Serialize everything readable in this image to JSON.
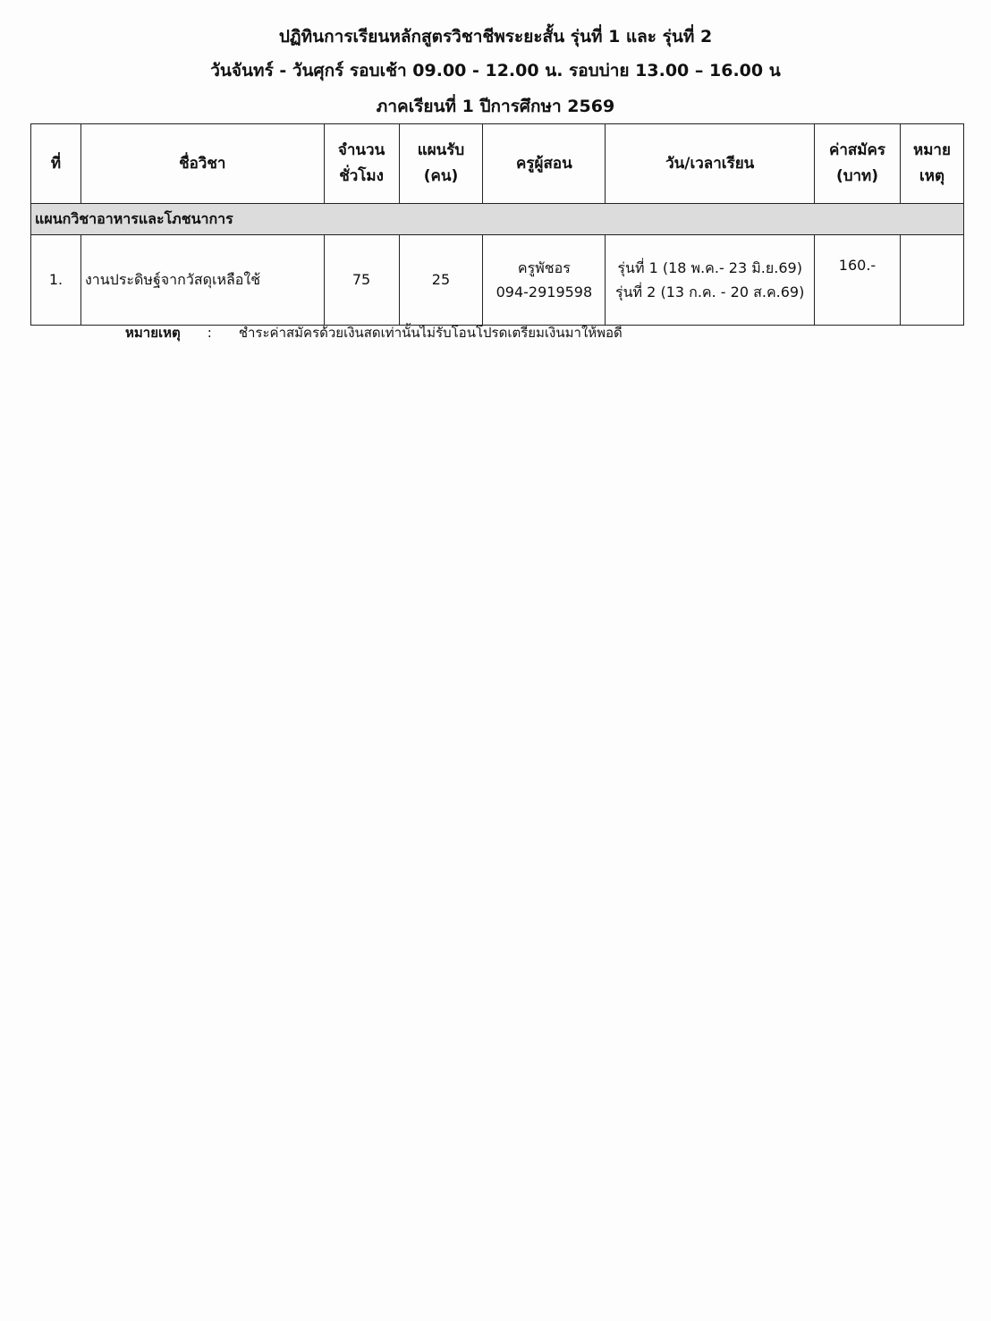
{
  "header": {
    "line1": "ปฏิทินการเรียนหลักสูตรวิชาชีพระยะสั้น รุ่นที่ 1 และ รุ่นที่ 2",
    "line2": "วันจันทร์ - วันศุกร์ รอบเช้า 09.00 - 12.00 น.  รอบบ่าย 13.00 – 16.00 น",
    "line3": "ภาคเรียนที่ 1 ปีการศึกษา 2569"
  },
  "table": {
    "columns": [
      {
        "l1": "ที่",
        "l2": ""
      },
      {
        "l1": "ชื่อวิชา",
        "l2": ""
      },
      {
        "l1": "จำนวน",
        "l2": "ชั่วโมง"
      },
      {
        "l1": "แผนรับ",
        "l2": "(คน)"
      },
      {
        "l1": "ครูผู้สอน",
        "l2": ""
      },
      {
        "l1": "วัน/เวลาเรียน",
        "l2": ""
      },
      {
        "l1": "ค่าสมัคร",
        "l2": "(บาท)"
      },
      {
        "l1": "หมาย",
        "l2": "เหตุ"
      }
    ],
    "category": "แผนกวิชาอาหารและโภชนาการ",
    "rows": [
      {
        "no": "1.",
        "subject": "งานประดิษฐ์จากวัสดุเหลือใช้",
        "hours": "75",
        "capacity": "25",
        "teacher": "ครูพัชอร",
        "phone": "094-2919598",
        "schedule1": "รุ่นที่ 1 (18 พ.ค.- 23 มิ.ย.69)",
        "schedule2": "รุ่นที่ 2 (13 ก.ค. - 20 ส.ค.69)",
        "fee": "160.-",
        "remark": ""
      }
    ]
  },
  "note": {
    "label": "หมายเหตุ",
    "colon": ":",
    "text": "ชำระค่าสมัครด้วยเงินสดเท่านั้นไม่รับโอนโปรดเตรียมเงินมาให้พอดี"
  }
}
